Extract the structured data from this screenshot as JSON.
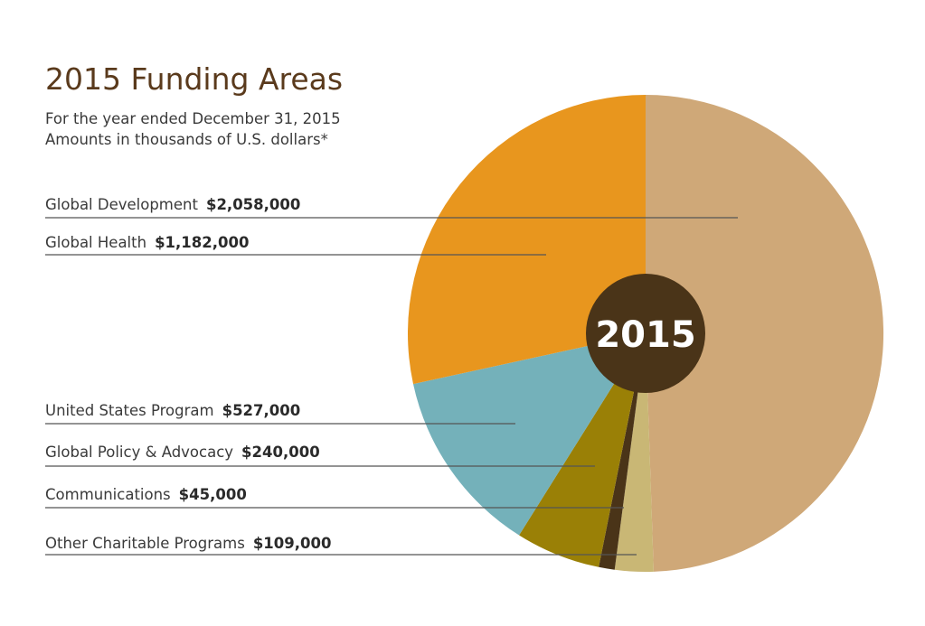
{
  "header": {
    "title": "2015 Funding Areas",
    "subtitle_line1": "For the year ended December 31, 2015",
    "subtitle_line2": "Amounts in thousands of U.S. dollars*"
  },
  "chart_data": {
    "type": "pie",
    "title": "2015 Funding Areas",
    "center_label": "2015",
    "slices": [
      {
        "name": "Global Development",
        "amount_label": "$2,058,000",
        "value": 2058000,
        "color": "#cfa878"
      },
      {
        "name": "Other Charitable Programs",
        "amount_label": "$109,000",
        "value": 109000,
        "color": "#c9b775"
      },
      {
        "name": "Communications",
        "amount_label": "$45,000",
        "value": 45000,
        "color": "#4a3418"
      },
      {
        "name": "Global Policy & Advocacy",
        "amount_label": "$240,000",
        "value": 240000,
        "color": "#9a8006"
      },
      {
        "name": "United States Program",
        "amount_label": "$527,000",
        "value": 527000,
        "color": "#74b1ba"
      },
      {
        "name": "Global Health",
        "amount_label": "$1,182,000",
        "value": 1182000,
        "color": "#e8961e"
      }
    ],
    "label_order": [
      "Global Development",
      "Global Health",
      "United States Program",
      "Global Policy & Advocacy",
      "Communications",
      "Other Charitable Programs"
    ],
    "center_color": "#4a3418"
  }
}
